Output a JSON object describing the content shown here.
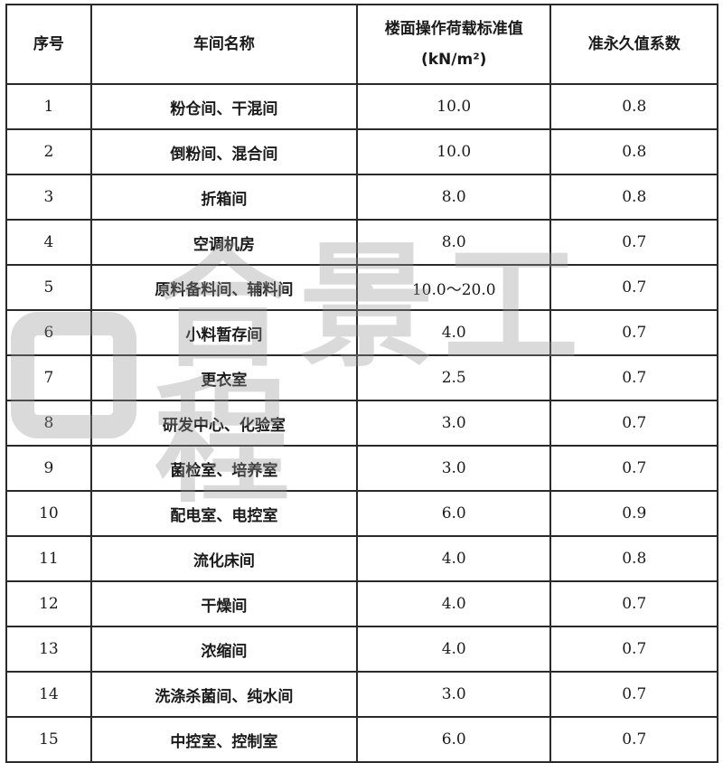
{
  "table": {
    "headers": [
      "序号",
      "车间名称",
      "楼面操作荷载标准值",
      "准永久值系数"
    ],
    "header_unit": "(kN/m²)",
    "rows": [
      [
        "1",
        "粉仓间、干混间",
        "10.0",
        "0.8"
      ],
      [
        "2",
        "倒粉间、混合间",
        "10.0",
        "0.8"
      ],
      [
        "3",
        "折箱间",
        "8.0",
        "0.8"
      ],
      [
        "4",
        "空调机房",
        "8.0",
        "0.7"
      ],
      [
        "5",
        "原料备料间、辅料间",
        "10.0～20.0",
        "0.7"
      ],
      [
        "6",
        "小料暂存间",
        "4.0",
        "0.7"
      ],
      [
        "7",
        "更衣室",
        "2.5",
        "0.7"
      ],
      [
        "8",
        "研发中心、化验室",
        "3.0",
        "0.7"
      ],
      [
        "9",
        "菌检室、培养室",
        "3.0",
        "0.7"
      ],
      [
        "10",
        "配电室、电控室",
        "6.0",
        "0.9"
      ],
      [
        "11",
        "流化床间",
        "4.0",
        "0.8"
      ],
      [
        "12",
        "干燥间",
        "4.0",
        "0.7"
      ],
      [
        "13",
        "浓缩间",
        "4.0",
        "0.7"
      ],
      [
        "14",
        "洗涤杀菌间、纯水间",
        "3.0",
        "0.7"
      ],
      [
        "15",
        "中控室、控制室",
        "6.0",
        "0.7"
      ]
    ]
  },
  "watermark": {
    "text": "合景工程"
  }
}
